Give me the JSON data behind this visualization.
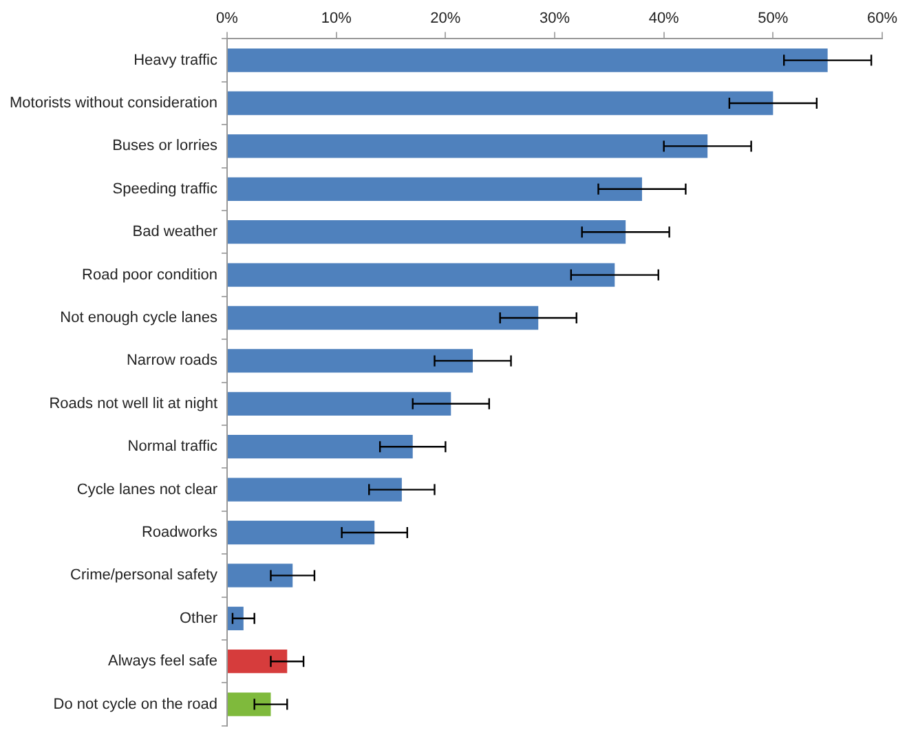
{
  "chart_data": {
    "type": "bar",
    "orientation": "horizontal",
    "categories": [
      "Heavy traffic",
      "Motorists without consideration",
      "Buses or lorries",
      "Speeding traffic",
      "Bad weather",
      "Road poor condition",
      "Not enough cycle lanes",
      "Narrow roads",
      "Roads not well lit at night",
      "Normal traffic",
      "Cycle lanes not clear",
      "Roadworks",
      "Crime/personal safety",
      "Other",
      "Always feel safe",
      "Do not cycle on the road"
    ],
    "values": [
      55,
      50,
      44,
      38,
      36.5,
      35.5,
      28.5,
      22.5,
      20.5,
      17,
      16,
      13.5,
      6,
      1.5,
      5.5,
      4
    ],
    "errors": [
      4,
      4,
      4,
      4,
      4,
      4,
      3.5,
      3.5,
      3.5,
      3,
      3,
      3,
      2,
      1,
      1.5,
      1.5
    ],
    "colors": [
      "#4f81bd",
      "#4f81bd",
      "#4f81bd",
      "#4f81bd",
      "#4f81bd",
      "#4f81bd",
      "#4f81bd",
      "#4f81bd",
      "#4f81bd",
      "#4f81bd",
      "#4f81bd",
      "#4f81bd",
      "#4f81bd",
      "#4f81bd",
      "#d63c3c",
      "#7fba3c"
    ],
    "xlim": [
      0,
      60
    ],
    "xticks": [
      {
        "value": 0,
        "label": "0%"
      },
      {
        "value": 10,
        "label": "10%"
      },
      {
        "value": 20,
        "label": "20%"
      },
      {
        "value": 30,
        "label": "30%"
      },
      {
        "value": 40,
        "label": "40%"
      },
      {
        "value": 50,
        "label": "50%"
      },
      {
        "value": 60,
        "label": "60%"
      }
    ],
    "grid": false,
    "legend": false
  }
}
